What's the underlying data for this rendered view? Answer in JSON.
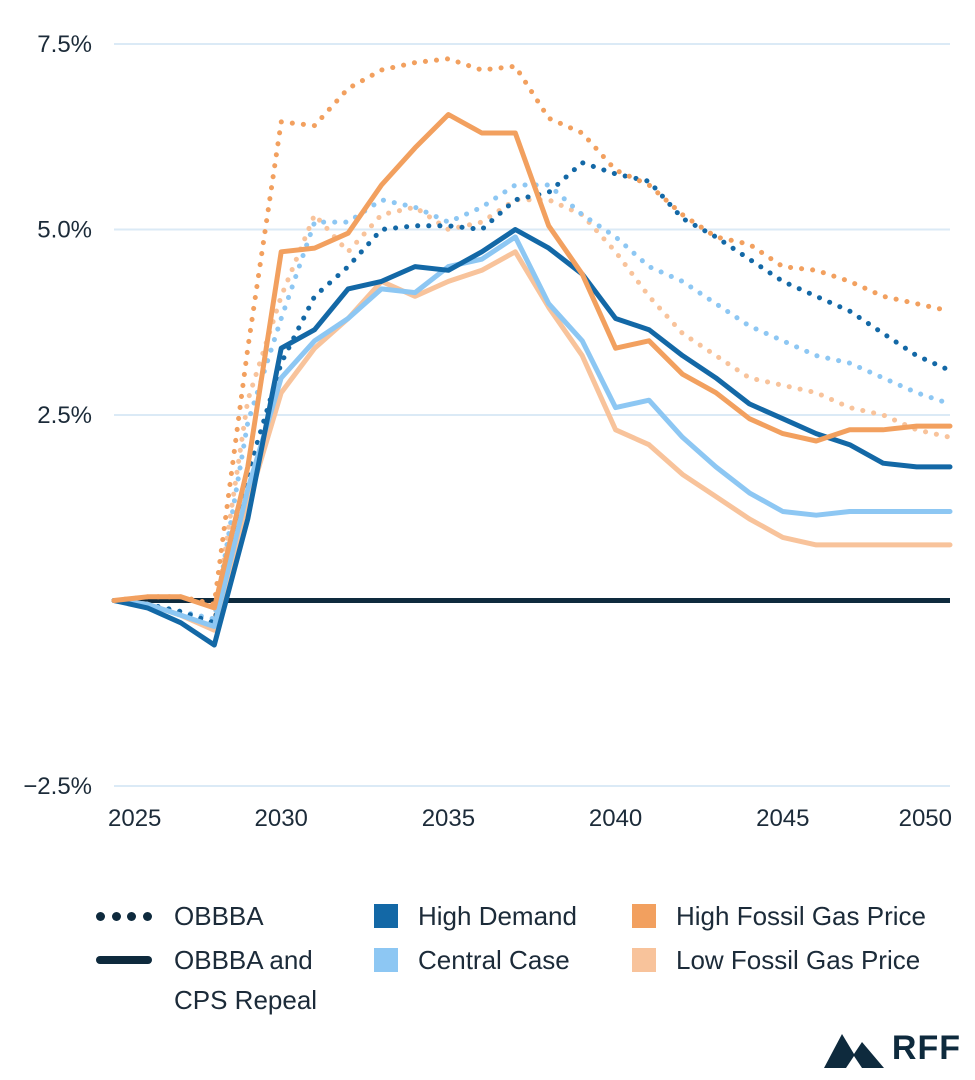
{
  "chart_data": {
    "type": "line",
    "title": "",
    "xlabel": "",
    "ylabel": "",
    "xlim": [
      2025,
      2050
    ],
    "ylim": [
      -2.5,
      7.5
    ],
    "y_ticks": [
      {
        "value": -2.5,
        "label": "−2.5%"
      },
      {
        "value": 2.5,
        "label": "2.5%"
      },
      {
        "value": 5.0,
        "label": "5.0%"
      },
      {
        "value": 7.5,
        "label": "7.5%"
      }
    ],
    "x_ticks": [
      {
        "value": 2025,
        "label": "2025"
      },
      {
        "value": 2030,
        "label": "2030"
      },
      {
        "value": 2035,
        "label": "2035"
      },
      {
        "value": 2040,
        "label": "2040"
      },
      {
        "value": 2045,
        "label": "2045"
      },
      {
        "value": 2050,
        "label": "2050"
      }
    ],
    "x": [
      2025,
      2026,
      2027,
      2028,
      2029,
      2030,
      2031,
      2032,
      2033,
      2034,
      2035,
      2036,
      2037,
      2038,
      2039,
      2040,
      2041,
      2042,
      2043,
      2044,
      2045,
      2046,
      2047,
      2048,
      2049,
      2050
    ],
    "zero_line": {
      "name": "OBBBA and CPS Repeal",
      "value": 0,
      "color": "#0e2a3d"
    },
    "series": [
      {
        "name": "Low Fossil Gas Price (OBBBA)",
        "color": "#f8c39b",
        "style": "dotted",
        "values": [
          0,
          -0.05,
          -0.2,
          -0.3,
          2.7,
          4.1,
          5.2,
          4.7,
          5.2,
          5.3,
          5.0,
          5.1,
          5.4,
          5.4,
          5.2,
          4.7,
          4.1,
          3.6,
          3.3,
          3.0,
          2.9,
          2.8,
          2.6,
          2.5,
          2.3,
          2.2
        ]
      },
      {
        "name": "Central Case (OBBBA)",
        "color": "#8dc7f3",
        "style": "dotted",
        "values": [
          0,
          -0.05,
          -0.15,
          -0.25,
          2.4,
          3.8,
          5.1,
          5.1,
          5.4,
          5.3,
          5.1,
          5.3,
          5.6,
          5.6,
          5.2,
          4.9,
          4.5,
          4.3,
          4.0,
          3.7,
          3.5,
          3.3,
          3.2,
          3.0,
          2.8,
          2.65
        ]
      },
      {
        "name": "High Demand (OBBBA)",
        "color": "#1368a6",
        "style": "dotted",
        "values": [
          0,
          -0.05,
          -0.15,
          -0.3,
          1.7,
          3.2,
          4.1,
          4.5,
          5.0,
          5.05,
          5.05,
          5.0,
          5.4,
          5.5,
          5.9,
          5.75,
          5.65,
          5.15,
          4.9,
          4.6,
          4.3,
          4.1,
          3.9,
          3.6,
          3.3,
          3.1
        ]
      },
      {
        "name": "High Fossil Gas Price (OBBBA)",
        "color": "#f2a05f",
        "style": "dotted",
        "values": [
          0,
          0.05,
          0.05,
          -0.05,
          3.4,
          6.45,
          6.4,
          6.9,
          7.15,
          7.25,
          7.3,
          7.15,
          7.2,
          6.5,
          6.3,
          5.8,
          5.6,
          5.2,
          4.9,
          4.8,
          4.5,
          4.45,
          4.3,
          4.1,
          4.0,
          3.9
        ]
      },
      {
        "name": "Low Fossil Gas Price",
        "color": "#f8c39b",
        "style": "solid",
        "values": [
          0,
          -0.05,
          -0.2,
          -0.4,
          1.3,
          2.8,
          3.4,
          3.8,
          4.3,
          4.1,
          4.3,
          4.45,
          4.7,
          3.95,
          3.3,
          2.3,
          2.1,
          1.7,
          1.4,
          1.1,
          0.85,
          0.75,
          0.75,
          0.75,
          0.75,
          0.75
        ]
      },
      {
        "name": "Central Case",
        "color": "#8dc7f3",
        "style": "solid",
        "values": [
          0,
          -0.05,
          -0.2,
          -0.35,
          1.5,
          3.0,
          3.5,
          3.8,
          4.2,
          4.15,
          4.5,
          4.6,
          4.9,
          4.0,
          3.5,
          2.6,
          2.7,
          2.2,
          1.8,
          1.45,
          1.2,
          1.15,
          1.2,
          1.2,
          1.2,
          1.2
        ]
      },
      {
        "name": "High Demand",
        "color": "#1368a6",
        "style": "solid",
        "values": [
          0,
          -0.1,
          -0.3,
          -0.6,
          1.1,
          3.4,
          3.65,
          4.2,
          4.3,
          4.5,
          4.45,
          4.7,
          5.0,
          4.75,
          4.4,
          3.8,
          3.65,
          3.3,
          3.0,
          2.65,
          2.45,
          2.25,
          2.1,
          1.85,
          1.8,
          1.8
        ]
      },
      {
        "name": "High Fossil Gas Price",
        "color": "#f2a05f",
        "style": "solid",
        "values": [
          0,
          0.05,
          0.05,
          -0.1,
          1.8,
          4.7,
          4.75,
          4.95,
          5.6,
          6.1,
          6.55,
          6.3,
          6.3,
          5.05,
          4.4,
          3.4,
          3.5,
          3.05,
          2.8,
          2.45,
          2.25,
          2.15,
          2.3,
          2.3,
          2.35,
          2.35
        ]
      }
    ]
  },
  "legend": {
    "obbba": "OBBBA",
    "obbba_cps_line1": "OBBBA and",
    "obbba_cps_line2": "CPS Repeal",
    "high_demand": "High Demand",
    "central_case": "Central Case",
    "high_gas": "High Fossil Gas Price",
    "low_gas": "Low Fossil Gas Price"
  },
  "colors": {
    "navy": "#0e2a3d",
    "high_demand": "#1368a6",
    "central_case": "#8dc7f3",
    "high_gas": "#f2a05f",
    "low_gas": "#f8c39b",
    "grid": "#dbeaf6"
  },
  "logo": {
    "text": "RFF",
    "icon": "mountain-logo-icon"
  }
}
